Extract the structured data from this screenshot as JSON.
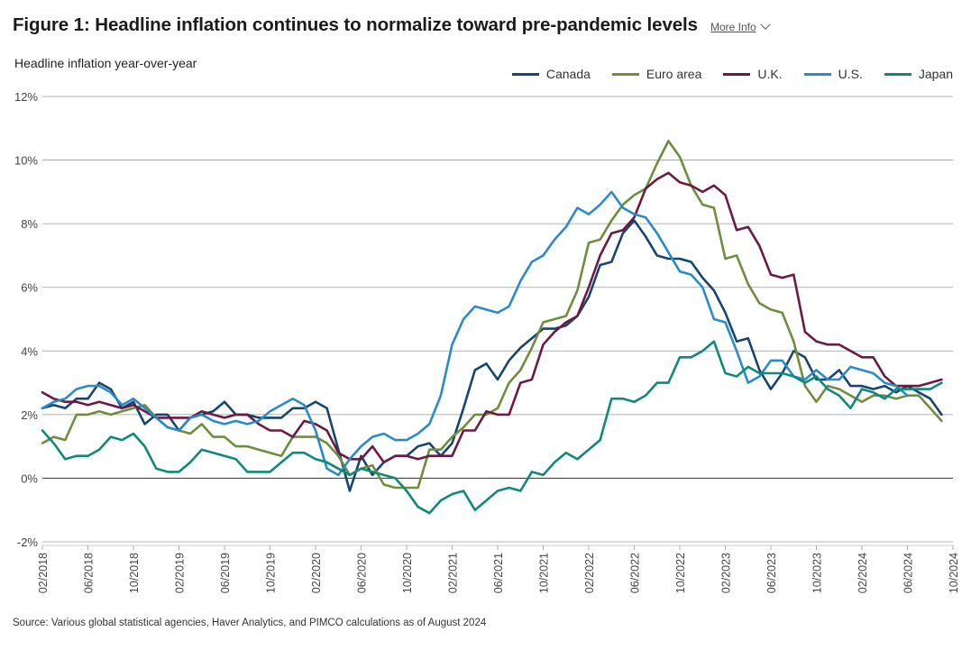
{
  "header": {
    "title": "Figure 1: Headline inflation continues to normalize toward pre-pandemic levels",
    "more_info": "More Info"
  },
  "source": "Source: Various global statistical agencies, Haver Analytics, and PIMCO calculations as of August 2024",
  "colors": {
    "Canada": "#16466f",
    "Euro area": "#6f8d3d",
    "U.K.": "#6a1a44",
    "U.S.": "#2a8bc6",
    "Japan": "#11897a",
    "grid": "#9a9a9a"
  },
  "chart_data": {
    "type": "line",
    "title": "Headline inflation year-over-year",
    "xlabel": "",
    "ylabel": "",
    "y_unit": "%",
    "ylim": [
      -2,
      12
    ],
    "y_ticks": [
      -2,
      0,
      2,
      4,
      6,
      8,
      10,
      12
    ],
    "y_tick_labels": [
      "-2%",
      "0%",
      "2%",
      "4%",
      "6%",
      "8%",
      "10%",
      "12%"
    ],
    "x_ticks": [
      "02/2018",
      "06/2018",
      "10/2018",
      "02/2019",
      "06/2019",
      "10/2019",
      "02/2020",
      "06/2020",
      "10/2020",
      "02/2021",
      "06/2021",
      "10/2021",
      "02/2022",
      "06/2022",
      "10/2022",
      "02/2023",
      "06/2023",
      "10/2023",
      "02/2024",
      "06/2024",
      "10/2024"
    ],
    "x_start": "02/2018",
    "x_end": "10/2024",
    "grid": true,
    "legend_position": "top-right",
    "series": [
      {
        "name": "Canada",
        "start": "02/2018",
        "values": [
          2.2,
          2.3,
          2.2,
          2.5,
          2.5,
          3.0,
          2.8,
          2.2,
          2.4,
          1.7,
          2.0,
          2.0,
          1.5,
          1.9,
          2.0,
          2.1,
          2.4,
          2.0,
          2.0,
          1.9,
          1.9,
          1.9,
          2.2,
          2.2,
          2.4,
          2.2,
          0.9,
          -0.4,
          0.7,
          0.1,
          0.5,
          0.7,
          0.7,
          1.0,
          1.1,
          0.7,
          1.1,
          2.2,
          3.4,
          3.6,
          3.1,
          3.7,
          4.1,
          4.4,
          4.7,
          4.7,
          4.8,
          5.1,
          5.7,
          6.7,
          6.8,
          7.7,
          8.1,
          7.6,
          7.0,
          6.9,
          6.9,
          6.8,
          6.3,
          5.9,
          5.2,
          4.3,
          4.4,
          3.4,
          2.8,
          3.3,
          4.0,
          3.8,
          3.1,
          3.1,
          3.4,
          2.9,
          2.9,
          2.8,
          2.9,
          2.7,
          2.9,
          2.7,
          2.5,
          2.0
        ]
      },
      {
        "name": "Euro area",
        "start": "02/2018",
        "values": [
          1.1,
          1.3,
          1.2,
          2.0,
          2.0,
          2.1,
          2.0,
          2.1,
          2.2,
          2.3,
          1.9,
          1.6,
          1.5,
          1.4,
          1.7,
          1.3,
          1.3,
          1.0,
          1.0,
          0.9,
          0.8,
          0.7,
          1.3,
          1.3,
          1.3,
          1.1,
          0.7,
          0.1,
          0.3,
          0.4,
          -0.2,
          -0.3,
          -0.3,
          -0.3,
          0.9,
          0.9,
          1.3,
          1.6,
          2.0,
          2.0,
          2.2,
          3.0,
          3.4,
          4.1,
          4.9,
          5.0,
          5.1,
          5.9,
          7.4,
          7.5,
          8.1,
          8.6,
          8.9,
          9.1,
          9.9,
          10.6,
          10.1,
          9.2,
          8.6,
          8.5,
          6.9,
          7.0,
          6.1,
          5.5,
          5.3,
          5.2,
          4.3,
          2.9,
          2.4,
          2.9,
          2.8,
          2.6,
          2.4,
          2.6,
          2.6,
          2.5,
          2.6,
          2.6,
          2.2,
          1.8
        ]
      },
      {
        "name": "U.K.",
        "start": "02/2018",
        "values": [
          2.7,
          2.5,
          2.4,
          2.4,
          2.3,
          2.4,
          2.3,
          2.2,
          2.3,
          2.1,
          1.9,
          1.9,
          1.9,
          1.9,
          2.1,
          2.0,
          1.9,
          2.0,
          2.0,
          1.7,
          1.5,
          1.5,
          1.3,
          1.8,
          1.7,
          1.5,
          0.8,
          0.6,
          0.6,
          1.0,
          0.5,
          0.7,
          0.7,
          0.6,
          0.7,
          0.7,
          0.7,
          1.5,
          1.5,
          2.1,
          2.0,
          2.0,
          3.0,
          3.1,
          4.2,
          4.6,
          4.9,
          5.1,
          6.0,
          7.0,
          7.7,
          7.8,
          8.2,
          9.1,
          9.4,
          9.6,
          9.3,
          9.2,
          9.0,
          9.2,
          8.9,
          7.8,
          7.9,
          7.3,
          6.4,
          6.3,
          6.4,
          4.6,
          4.3,
          4.2,
          4.2,
          4.0,
          3.8,
          3.8,
          3.2,
          2.9,
          2.9,
          2.9,
          3.0,
          3.1
        ]
      },
      {
        "name": "U.S.",
        "start": "02/2018",
        "values": [
          2.2,
          2.4,
          2.5,
          2.8,
          2.9,
          2.9,
          2.7,
          2.3,
          2.5,
          2.2,
          1.9,
          1.6,
          1.5,
          1.9,
          2.0,
          1.8,
          1.7,
          1.8,
          1.7,
          1.8,
          2.1,
          2.3,
          2.5,
          2.3,
          1.5,
          0.3,
          0.1,
          0.6,
          1.0,
          1.3,
          1.4,
          1.2,
          1.2,
          1.4,
          1.7,
          2.6,
          4.2,
          5.0,
          5.4,
          5.3,
          5.2,
          5.4,
          6.2,
          6.8,
          7.0,
          7.5,
          7.9,
          8.5,
          8.3,
          8.6,
          9.0,
          8.5,
          8.3,
          8.2,
          7.7,
          7.1,
          6.5,
          6.4,
          6.0,
          5.0,
          4.9,
          4.0,
          3.0,
          3.2,
          3.7,
          3.7,
          3.2,
          3.1,
          3.4,
          3.1,
          3.1,
          3.5,
          3.4,
          3.3,
          3.0,
          2.9,
          2.6
        ]
      },
      {
        "name": "Japan",
        "start": "02/2018",
        "values": [
          1.5,
          1.1,
          0.6,
          0.7,
          0.7,
          0.9,
          1.3,
          1.2,
          1.4,
          1.0,
          0.3,
          0.2,
          0.2,
          0.5,
          0.9,
          0.8,
          0.7,
          0.6,
          0.2,
          0.2,
          0.2,
          0.5,
          0.8,
          0.8,
          0.6,
          0.5,
          0.3,
          0.1,
          0.3,
          0.2,
          0.1,
          0.0,
          -0.4,
          -0.9,
          -1.1,
          -0.7,
          -0.5,
          -0.4,
          -1.0,
          -0.7,
          -0.4,
          -0.3,
          -0.4,
          0.2,
          0.1,
          0.5,
          0.8,
          0.6,
          0.9,
          1.2,
          2.5,
          2.5,
          2.4,
          2.6,
          3.0,
          3.0,
          3.8,
          3.8,
          4.0,
          4.3,
          3.3,
          3.2,
          3.5,
          3.3,
          3.3,
          3.3,
          3.2,
          3.0,
          3.2,
          2.8,
          2.6,
          2.2,
          2.8,
          2.7,
          2.5,
          2.8,
          2.8,
          2.8,
          2.8,
          3.0
        ]
      }
    ]
  }
}
